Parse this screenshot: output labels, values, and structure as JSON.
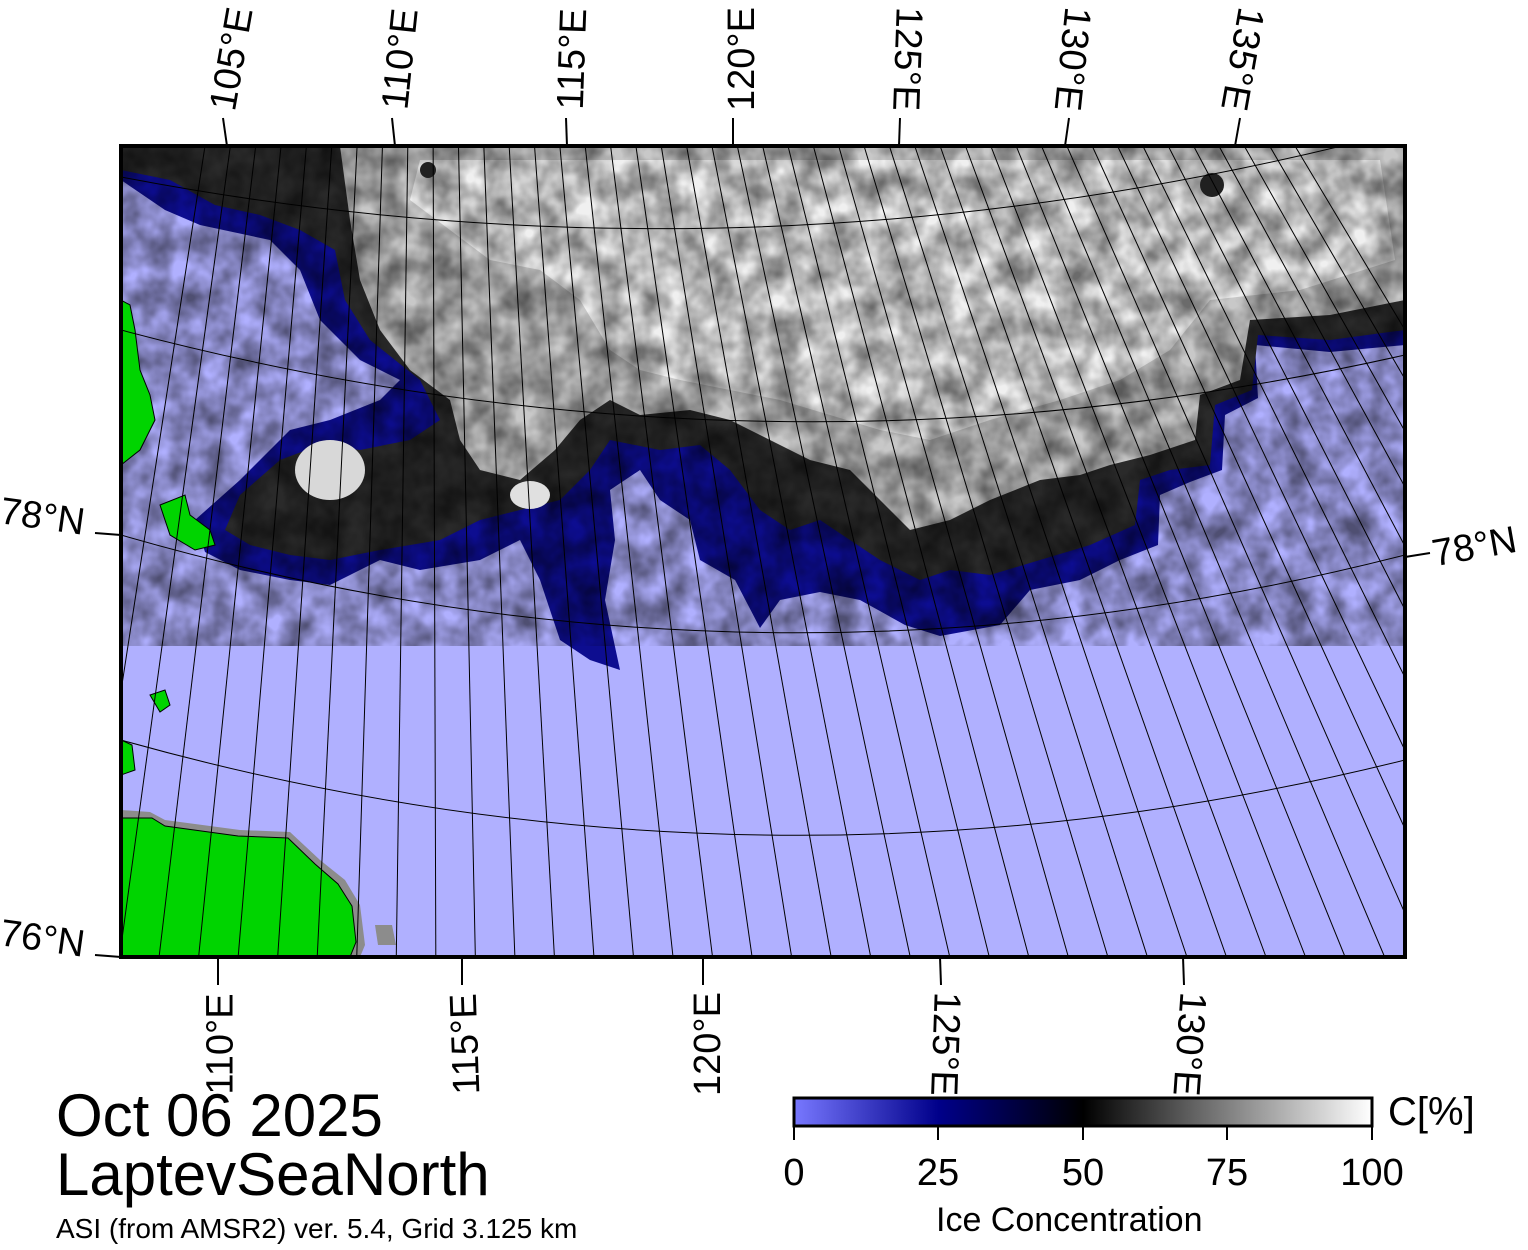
{
  "map": {
    "date": "Oct 06 2025",
    "region": "LaptevSeaNorth",
    "product": "ASI (from AMSR2) ver. 5.4,  Grid 3.125 km",
    "colors": {
      "open_water": "#b0b0ff",
      "land": "#00d400",
      "coast_mask": "#8c8c8c",
      "frame": "#000000"
    },
    "top_lon_labels": [
      "105°E",
      "110°E",
      "115°E",
      "120°E",
      "125°E",
      "130°E",
      "135°E"
    ],
    "bottom_lon_labels": [
      "110°E",
      "115°E",
      "120°E",
      "125°E",
      "130°E"
    ],
    "lat_labels_left": [
      "78°N",
      "76°N"
    ],
    "lat_labels_right": [
      "78°N"
    ]
  },
  "colorbar": {
    "unit": "C[%]",
    "title": "Ice Concentration",
    "ticks": [
      "0",
      "25",
      "50",
      "75",
      "100"
    ],
    "stops": [
      "#7878ff",
      "#00008a",
      "#000000",
      "#808080",
      "#ffffff"
    ]
  }
}
